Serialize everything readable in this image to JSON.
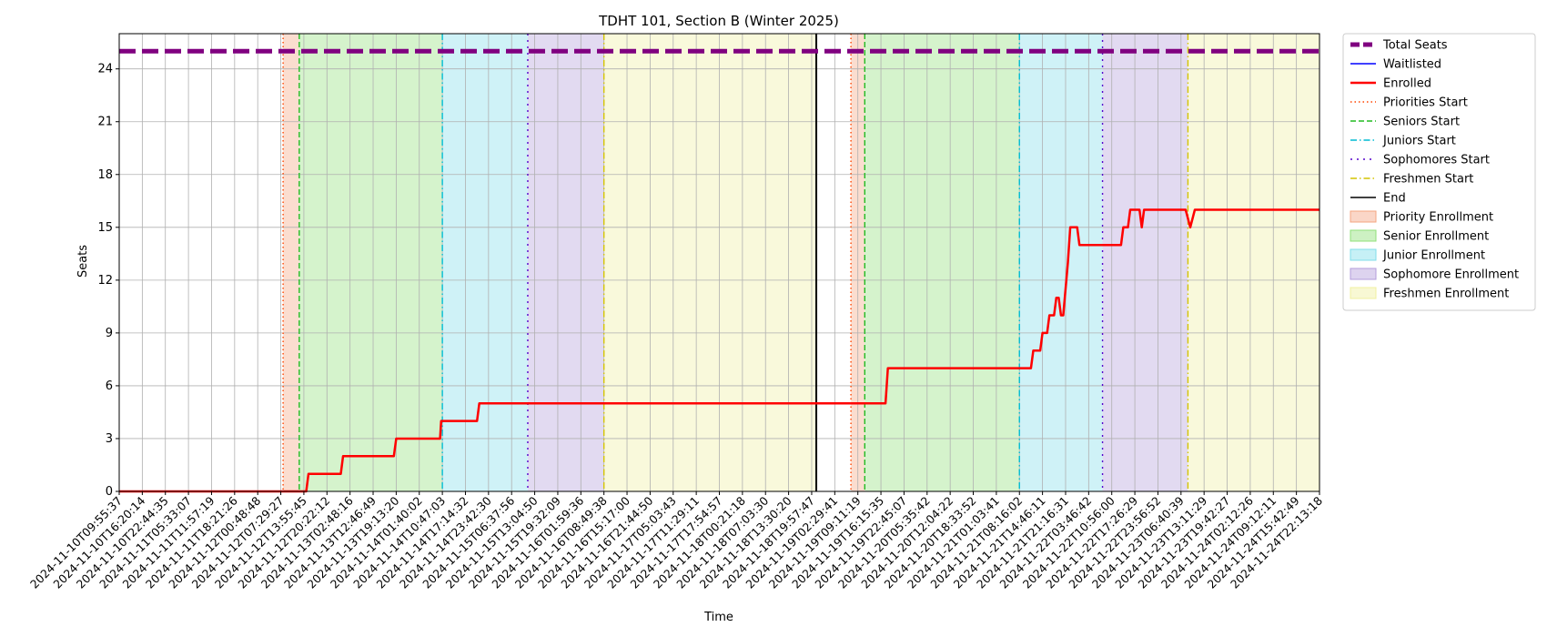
{
  "chart_data": {
    "type": "line",
    "title": "TDHT 101, Section B (Winter 2025)",
    "xlabel": "Time",
    "ylabel": "Seats",
    "ylim": [
      0,
      26
    ],
    "yticks": [
      0,
      3,
      6,
      9,
      12,
      15,
      18,
      21,
      24
    ],
    "grid": true,
    "legend_position": "outside-right",
    "x_tick_labels": [
      "2024-11-10T09:55:37",
      "2024-11-10T16:20:14",
      "2024-11-10T22:44:35",
      "2024-11-11T05:33:07",
      "2024-11-11T11:57:19",
      "2024-11-11T18:21:26",
      "2024-11-12T00:48:48",
      "2024-11-12T07:29:27",
      "2024-11-12T13:55:45",
      "2024-11-12T20:22:12",
      "2024-11-13T02:48:16",
      "2024-11-13T12:46:49",
      "2024-11-13T19:13:20",
      "2024-11-14T01:40:02",
      "2024-11-14T10:47:03",
      "2024-11-14T17:14:32",
      "2024-11-14T23:42:30",
      "2024-11-15T06:37:56",
      "2024-11-15T13:04:50",
      "2024-11-15T19:32:09",
      "2024-11-16T01:59:36",
      "2024-11-16T08:49:38",
      "2024-11-16T15:17:00",
      "2024-11-16T21:44:50",
      "2024-11-17T05:03:43",
      "2024-11-17T11:29:11",
      "2024-11-17T17:54:57",
      "2024-11-18T00:21:18",
      "2024-11-18T07:03:30",
      "2024-11-18T13:30:20",
      "2024-11-18T19:57:47",
      "2024-11-19T02:29:41",
      "2024-11-19T09:11:19",
      "2024-11-19T16:15:35",
      "2024-11-19T22:45:07",
      "2024-11-20T05:35:42",
      "2024-11-20T12:04:22",
      "2024-11-20T18:33:52",
      "2024-11-21T01:03:41",
      "2024-11-21T08:16:02",
      "2024-11-21T14:46:11",
      "2024-11-21T21:16:31",
      "2024-11-22T03:46:42",
      "2024-11-22T10:56:00",
      "2024-11-22T17:26:29",
      "2024-11-22T23:56:52",
      "2024-11-23T06:40:39",
      "2024-11-23T13:11:29",
      "2024-11-23T19:42:27",
      "2024-11-24T02:12:26",
      "2024-11-24T09:12:11",
      "2024-11-24T15:42:49",
      "2024-11-24T22:13:18"
    ],
    "series": [
      {
        "name": "Total Seats",
        "style": "dashed",
        "color": "#800080",
        "values": [
          [
            0,
            25
          ],
          [
            52,
            25
          ]
        ]
      },
      {
        "name": "Waitlisted",
        "style": "solid",
        "color": "#0000ff",
        "values": []
      },
      {
        "name": "Enrolled",
        "style": "solid",
        "color": "#ff0000",
        "values": [
          [
            0,
            0
          ],
          [
            8.1,
            0
          ],
          [
            8.2,
            1
          ],
          [
            9.6,
            1
          ],
          [
            9.7,
            2
          ],
          [
            11.9,
            2
          ],
          [
            12,
            3
          ],
          [
            13.9,
            3
          ],
          [
            13.95,
            4
          ],
          [
            15.5,
            4
          ],
          [
            15.6,
            5
          ],
          [
            33.2,
            5
          ],
          [
            33.3,
            7
          ],
          [
            39.5,
            7
          ],
          [
            39.6,
            8
          ],
          [
            39.9,
            8
          ],
          [
            40,
            9
          ],
          [
            40.2,
            9
          ],
          [
            40.3,
            10
          ],
          [
            40.5,
            10
          ],
          [
            40.6,
            11
          ],
          [
            40.7,
            11
          ],
          [
            40.8,
            10
          ],
          [
            40.9,
            10
          ],
          [
            41.1,
            13
          ],
          [
            41.2,
            15
          ],
          [
            41.5,
            15
          ],
          [
            41.6,
            14
          ],
          [
            43.4,
            14
          ],
          [
            43.5,
            15
          ],
          [
            43.7,
            15
          ],
          [
            43.8,
            16
          ],
          [
            44.2,
            16
          ],
          [
            44.3,
            15
          ],
          [
            44.4,
            16
          ],
          [
            46.2,
            16
          ],
          [
            46.4,
            15
          ],
          [
            46.6,
            16
          ],
          [
            52,
            16
          ]
        ]
      },
      {
        "name": "Priorities Start",
        "style": "dotted",
        "color": "#ff4500",
        "values": []
      },
      {
        "name": "Seniors Start",
        "style": "dashed",
        "color": "#22bb22",
        "values": []
      },
      {
        "name": "Juniors Start",
        "style": "dashdot",
        "color": "#00bcd4",
        "values": []
      },
      {
        "name": "Sophomores Start",
        "style": "dashdotdot",
        "color": "#5500cc",
        "values": []
      },
      {
        "name": "Freshmen Start",
        "style": "dashdot",
        "color": "#d4c400",
        "values": []
      },
      {
        "name": "End",
        "style": "solid",
        "color": "#000000",
        "values": []
      }
    ],
    "markers": [
      {
        "name": "Priorities Start",
        "x": [
          7.1,
          31.7
        ]
      },
      {
        "name": "Seniors Start",
        "x": [
          7.8,
          32.3
        ]
      },
      {
        "name": "Juniors Start",
        "x": [
          14,
          39
        ]
      },
      {
        "name": "Sophomores Start",
        "x": [
          17.7,
          42.6
        ]
      },
      {
        "name": "Freshmen Start",
        "x": [
          21,
          46.3
        ]
      },
      {
        "name": "End",
        "x": [
          30.2
        ]
      }
    ],
    "bands": [
      {
        "name": "Priority Enrollment",
        "color": "#f4a582",
        "ranges": [
          [
            7.1,
            7.8
          ],
          [
            31.7,
            32.3
          ]
        ]
      },
      {
        "name": "Senior Enrollment",
        "color": "#90e07a",
        "ranges": [
          [
            7.8,
            14
          ],
          [
            32.3,
            39
          ]
        ]
      },
      {
        "name": "Junior Enrollment",
        "color": "#80deea",
        "ranges": [
          [
            14,
            17.7
          ],
          [
            39,
            42.6
          ]
        ]
      },
      {
        "name": "Sophomore Enrollment",
        "color": "#b39ddb",
        "ranges": [
          [
            17.7,
            21
          ],
          [
            42.6,
            46.3
          ]
        ]
      },
      {
        "name": "Freshmen Enrollment",
        "color": "#f0f0a0",
        "ranges": [
          [
            21,
            30.2
          ],
          [
            46.3,
            52
          ]
        ]
      }
    ],
    "legend": [
      {
        "label": "Total Seats",
        "kind": "line",
        "color": "#800080",
        "style": "thick"
      },
      {
        "label": "Waitlisted",
        "kind": "line",
        "color": "#0000ff",
        "style": "solid"
      },
      {
        "label": "Enrolled",
        "kind": "line",
        "color": "#ff0000",
        "style": "bold"
      },
      {
        "label": "Priorities Start",
        "kind": "line",
        "color": "#ff4500",
        "style": "dotted"
      },
      {
        "label": "Seniors Start",
        "kind": "line",
        "color": "#22bb22",
        "style": "dashed"
      },
      {
        "label": "Juniors Start",
        "kind": "line",
        "color": "#00bcd4",
        "style": "dashdot"
      },
      {
        "label": "Sophomores Start",
        "kind": "line",
        "color": "#5500cc",
        "style": "dashdotdot"
      },
      {
        "label": "Freshmen Start",
        "kind": "line",
        "color": "#d4c400",
        "style": "dashdot"
      },
      {
        "label": "End",
        "kind": "line",
        "color": "#000000",
        "style": "solid"
      },
      {
        "label": "Priority Enrollment",
        "kind": "patch",
        "color": "#f4a582"
      },
      {
        "label": "Senior Enrollment",
        "kind": "patch",
        "color": "#90e07a"
      },
      {
        "label": "Junior Enrollment",
        "kind": "patch",
        "color": "#80deea"
      },
      {
        "label": "Sophomore Enrollment",
        "kind": "patch",
        "color": "#b39ddb"
      },
      {
        "label": "Freshmen Enrollment",
        "kind": "patch",
        "color": "#f0f0a0"
      }
    ]
  }
}
